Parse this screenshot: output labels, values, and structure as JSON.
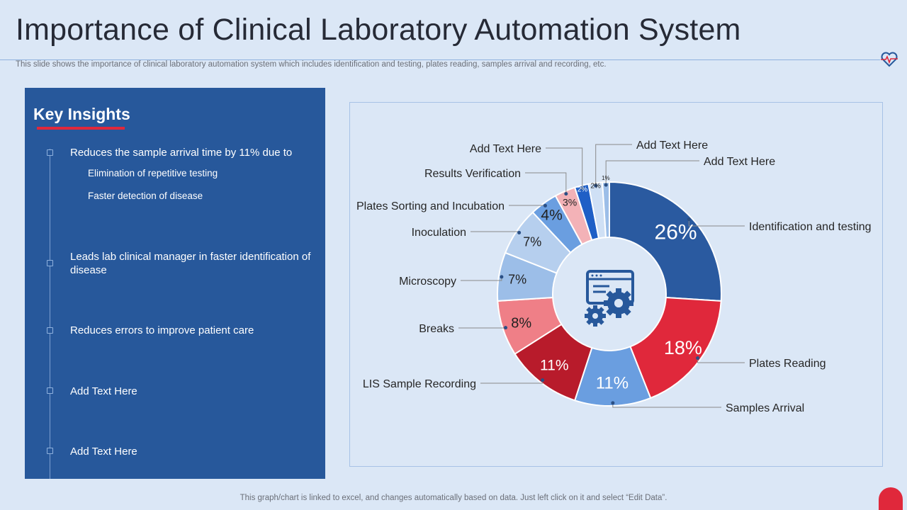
{
  "title": "Importance of Clinical Laboratory Automation System",
  "subtitle": "This slide shows the importance of clinical laboratory automation system which includes identification and testing, plates reading, samples arrival and recording, etc.",
  "insights": {
    "heading": "Key Insights",
    "items": [
      {
        "text": "Reduces the sample arrival time by 11% due to"
      },
      {
        "text": "Leads lab clinical manager in faster identification of disease"
      },
      {
        "text": "Reduces errors to improve patient care"
      },
      {
        "text": "Add Text Here"
      },
      {
        "text": "Add Text Here"
      }
    ],
    "subitems": [
      "Elimination of repetitive testing",
      "Faster detection of disease"
    ]
  },
  "footer": "This graph/chart is linked to excel,  and changes automatically based on data. Just left click on it and select “Edit Data”.",
  "chart_data": {
    "type": "pie",
    "subtype": "donut",
    "categories": [
      "Identification and testing",
      "Plates Reading",
      "Samples Arrival",
      "LIS Sample Recording",
      "Breaks",
      "Microscopy",
      "Inoculation",
      "Plates Sorting and Incubation",
      "Results Verification",
      "Add Text Here",
      "Add Text Here",
      "Add Text Here"
    ],
    "values": [
      26,
      18,
      11,
      11,
      8,
      7,
      7,
      4,
      3,
      2,
      2,
      1
    ],
    "value_labels": [
      "26%",
      "18%",
      "11%",
      "11%",
      "8%",
      "7%",
      "7%",
      "4%",
      "3%",
      "2%",
      "2%",
      "1%"
    ],
    "colors": [
      "#2a5aa0",
      "#e0283b",
      "#6a9ee0",
      "#b81b2b",
      "#ef7f87",
      "#9cbee8",
      "#b6cfee",
      "#6a9ee0",
      "#f3b2b7",
      "#1f5fc6",
      "#cfe0f5",
      "#9cbee8"
    ],
    "center_icon": "settings-gears-icon"
  }
}
